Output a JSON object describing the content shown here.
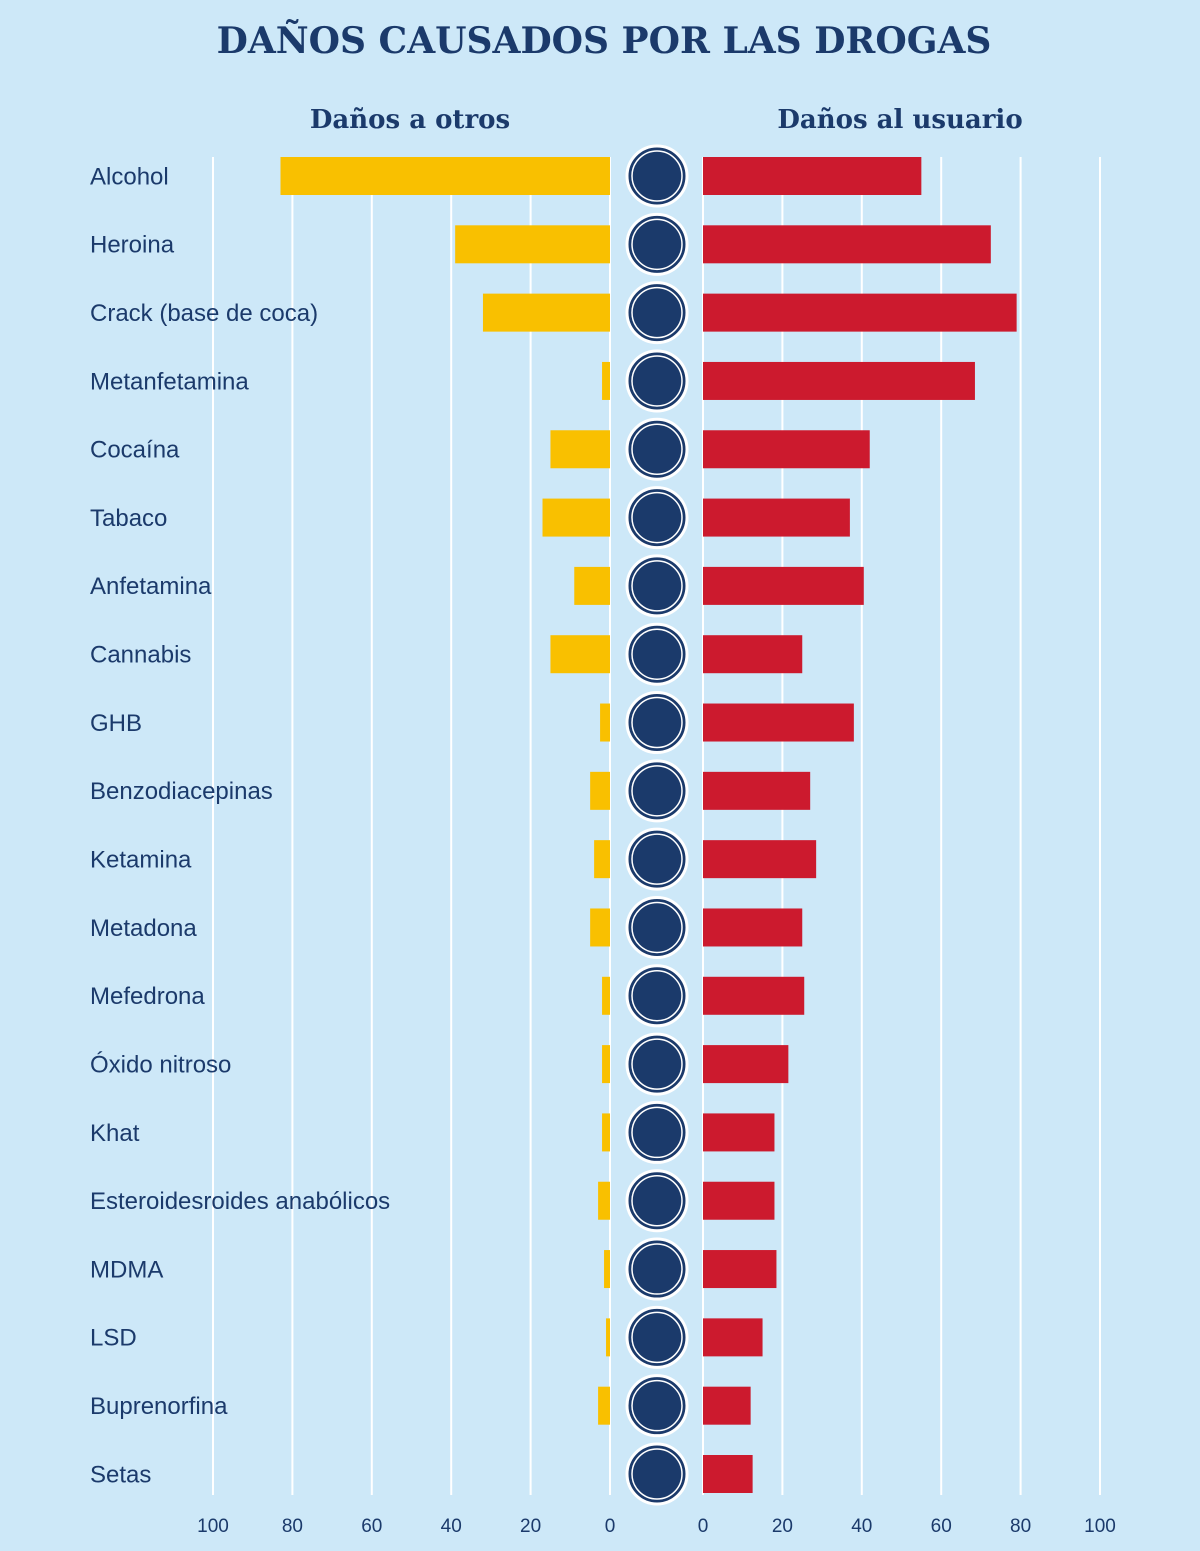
{
  "chart_data": {
    "type": "butterfly",
    "title": "DAÑOS CAUSADOS POR LAS DROGAS",
    "categories": [
      "Alcohol",
      "Heroina",
      "Crack (base de coca)",
      "Metanfetamina",
      "Cocaína",
      "Tabaco",
      "Anfetamina",
      "Cannabis",
      "GHB",
      "Benzodiacepinas",
      "Ketamina",
      "Metadona",
      "Mefedrona",
      "Óxido nitroso",
      "Khat",
      "Esteroidesroides anabólicos",
      "MDMA",
      "LSD",
      "Buprenorfina",
      "Setas"
    ],
    "series": [
      {
        "name": "Daños a otros",
        "color": "#f9c000",
        "values": [
          83,
          39,
          32,
          2,
          15,
          17,
          9,
          15,
          2.5,
          5,
          4,
          5,
          2,
          2,
          2,
          3,
          1.5,
          1,
          3,
          0
        ]
      },
      {
        "name": "Daños al usuario",
        "color": "#cc1a2e",
        "values": [
          55,
          72.5,
          79,
          68.5,
          42,
          37,
          40.5,
          25,
          38,
          27,
          28.5,
          25,
          25.5,
          21.5,
          18,
          18,
          18.5,
          15,
          12,
          12.5
        ]
      }
    ],
    "xlim": [
      0,
      100
    ],
    "xticks": [
      0,
      20,
      40,
      60,
      80,
      100
    ],
    "grid": true
  }
}
